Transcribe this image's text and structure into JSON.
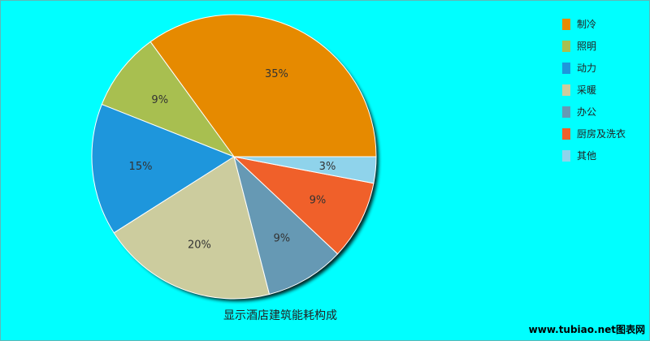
{
  "chart_data": {
    "type": "pie",
    "title": "显示酒店建筑能耗构成",
    "legend_position": "top-right",
    "start_angle_deg": 0,
    "direction": "counterclockwise",
    "slices": [
      {
        "name": "制冷",
        "value": 35,
        "label": "35%",
        "color": "#e68a00"
      },
      {
        "name": "照明",
        "value": 9,
        "label": "9%",
        "color": "#a8bf50"
      },
      {
        "name": "动力",
        "value": 15,
        "label": "15%",
        "color": "#1e96dc"
      },
      {
        "name": "采暖",
        "value": 20,
        "label": "20%",
        "color": "#cccc9e"
      },
      {
        "name": "办公",
        "value": 9,
        "label": "9%",
        "color": "#6699b4"
      },
      {
        "name": "厨房及洗衣",
        "value": 9,
        "label": "9%",
        "color": "#f0602a"
      },
      {
        "name": "其他",
        "value": 3,
        "label": "3%",
        "color": "#8fd3eb"
      }
    ]
  },
  "watermark": {
    "text": "www.tubiao.net图表网"
  },
  "background_color": "#00ffff"
}
